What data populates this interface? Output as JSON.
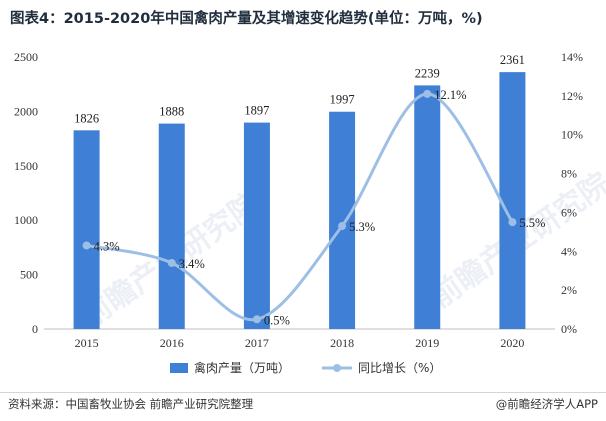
{
  "chart_data": {
    "type": "bar",
    "title": "图表4：2015-2020年中国禽肉产量及其增速变化趋势(单位：万吨，%)",
    "categories": [
      "2015",
      "2016",
      "2017",
      "2018",
      "2019",
      "2020"
    ],
    "series": [
      {
        "name": "禽肉产量（万吨）",
        "type": "bar",
        "axis": "left",
        "values": [
          1826,
          1888,
          1897,
          1997,
          2239,
          2361
        ],
        "labels": [
          "1826",
          "1888",
          "1897",
          "1997",
          "2239",
          "2361"
        ]
      },
      {
        "name": "同比增长（%）",
        "type": "line",
        "axis": "right",
        "values": [
          4.3,
          3.4,
          0.5,
          5.3,
          12.1,
          5.5
        ],
        "labels": [
          "4.3%",
          "3.4%",
          "0.5%",
          "5.3%",
          "12.1%",
          "5.5%"
        ]
      }
    ],
    "ylim_left": [
      0,
      2500
    ],
    "yticks_left": [
      "0",
      "500",
      "1000",
      "1500",
      "2000",
      "2500"
    ],
    "ylim_right": [
      0,
      14
    ],
    "yticks_right": [
      "0%",
      "2%",
      "4%",
      "6%",
      "8%",
      "10%",
      "12%",
      "14%"
    ],
    "grid": false,
    "legend": "bottom-center"
  },
  "colors": {
    "bar": "#3f7fd6",
    "line": "#9dbfe5"
  },
  "footer": {
    "source": "资料来源：中国畜牧业协会 前瞻产业研究院整理",
    "brand": "@前瞻经济学人APP"
  },
  "watermark": {
    "text": "前瞻产业研究院"
  }
}
